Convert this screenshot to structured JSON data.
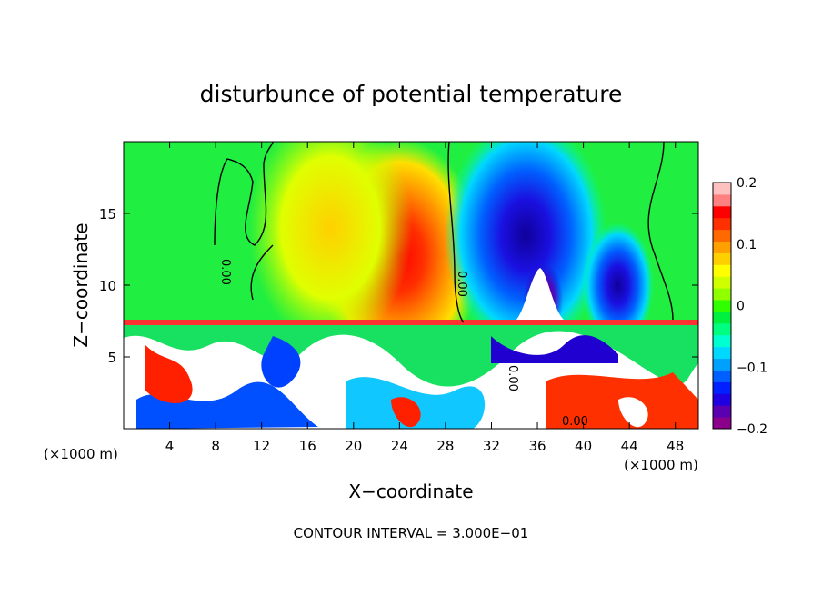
{
  "chart_data": {
    "type": "heatmap",
    "title": "disturbunce of potential temperature",
    "xlabel": "X−coordinate",
    "ylabel": "Z−coordinate",
    "x_unit_left": "(×1000 m)",
    "x_unit_right": "(×1000 m)",
    "xlim": [
      0,
      50
    ],
    "ylim": [
      0,
      20
    ],
    "x_ticks": [
      4,
      8,
      12,
      16,
      20,
      24,
      28,
      32,
      36,
      40,
      44,
      48
    ],
    "y_ticks": [
      5,
      10,
      15
    ],
    "colorbar": {
      "range": [
        -0.2,
        0.2
      ],
      "tick_values": [
        0.2,
        0.1,
        0,
        -0.1,
        -0.2
      ],
      "tick_labels": [
        "0.2",
        "0.1",
        "0",
        "−0.1",
        "−0.2"
      ],
      "colors": [
        "#8a008a",
        "#5a00b0",
        "#1e00e0",
        "#0020ff",
        "#0060ff",
        "#00a0ff",
        "#00d8ff",
        "#00ffd0",
        "#00ff80",
        "#00f040",
        "#30ff00",
        "#90ff00",
        "#d0ff00",
        "#ffff00",
        "#ffd000",
        "#ffa000",
        "#ff6a00",
        "#ff3000",
        "#ff0000",
        "#ff8080",
        "#ffc0c0"
      ]
    },
    "contour_label": "0.00",
    "contour_interval_text": "CONTOUR INTERVAL = 3.000E−01",
    "features": [
      {
        "kind": "warm",
        "x": 24,
        "z": 12,
        "value": 0.17
      },
      {
        "kind": "cold",
        "x": 35,
        "z": 13.5,
        "value": -0.2
      },
      {
        "kind": "cold",
        "x": 43,
        "z": 10,
        "value": -0.12
      },
      {
        "kind": "warm",
        "x": 18,
        "z": 14,
        "value": 0.05
      }
    ]
  }
}
